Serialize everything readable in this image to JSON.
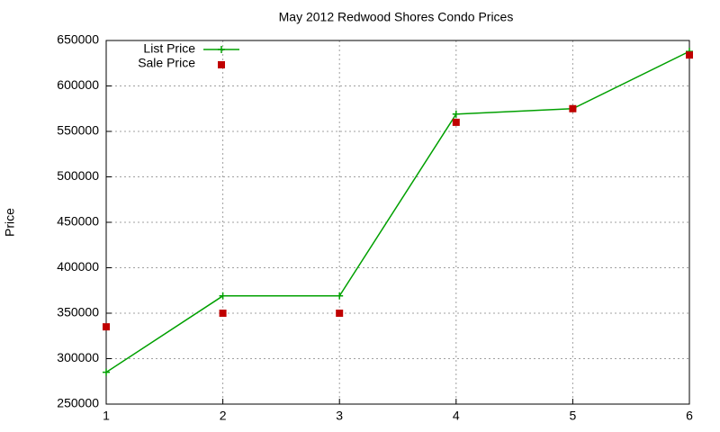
{
  "chart_data": {
    "type": "line",
    "title": "May 2012 Redwood Shores Condo Prices",
    "y_label": "Price",
    "x": [
      1,
      2,
      3,
      4,
      5,
      6
    ],
    "series": [
      {
        "name": "List Price",
        "color": "#00a000",
        "style": "linespoints",
        "values": [
          285000,
          369000,
          369000,
          569000,
          575000,
          638000
        ]
      },
      {
        "name": "Sale Price",
        "color": "#c00000",
        "style": "points",
        "values": [
          335000,
          350000,
          350000,
          560000,
          575000,
          634000
        ]
      }
    ],
    "xlim": [
      1,
      6
    ],
    "xticks": [
      1,
      2,
      3,
      4,
      5,
      6
    ],
    "ylim": [
      250000,
      650000
    ],
    "yticks": [
      250000,
      300000,
      350000,
      400000,
      450000,
      500000,
      550000,
      600000,
      650000
    ],
    "grid": true,
    "legend": "top-left"
  }
}
